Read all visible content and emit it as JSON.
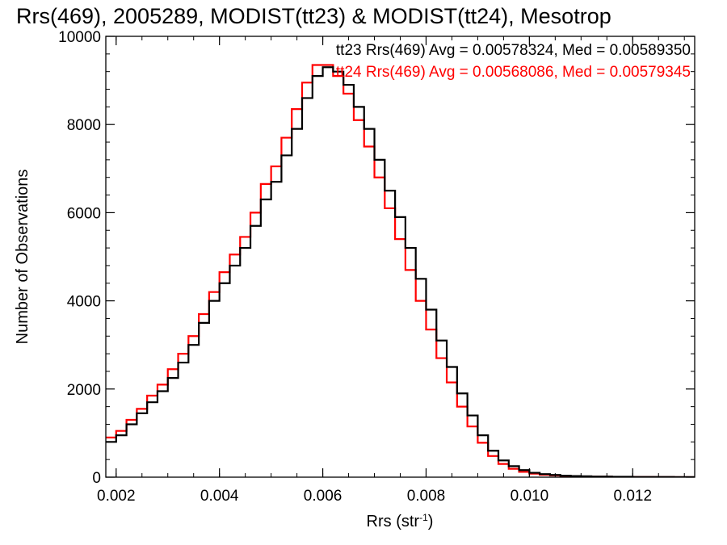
{
  "chart_data": {
    "type": "histogram",
    "title": "Rrs(469), 2005289, MODIST(tt23) & MODIST(tt24), Mesotrop",
    "xlabel": "Rrs (str",
    "xlabel_superscript": "-1",
    "xlabel_suffix": ")",
    "ylabel": "Number of Observations",
    "xlim": [
      0.0018,
      0.0132
    ],
    "ylim": [
      0,
      10000
    ],
    "x_ticks": [
      0.002,
      0.004,
      0.006,
      0.008,
      0.01,
      0.012
    ],
    "x_tick_labels": [
      "0.002",
      "0.004",
      "0.006",
      "0.008",
      "0.010",
      "0.012"
    ],
    "y_ticks": [
      0,
      2000,
      4000,
      6000,
      8000,
      10000
    ],
    "y_tick_labels": [
      "0",
      "2000",
      "4000",
      "6000",
      "8000",
      "10000"
    ],
    "legend_position": "top-right",
    "series": [
      {
        "name": "tt23",
        "legend": "tt23 Rrs(469) Avg = 0.00578324, Med = 0.00589350",
        "color": "#000000",
        "x": [
          0.0018,
          0.002,
          0.0022,
          0.0024,
          0.0026,
          0.0028,
          0.003,
          0.0032,
          0.0034,
          0.0036,
          0.0038,
          0.004,
          0.0042,
          0.0044,
          0.0046,
          0.0048,
          0.005,
          0.0052,
          0.0054,
          0.0056,
          0.0058,
          0.006,
          0.0062,
          0.0064,
          0.0066,
          0.0068,
          0.007,
          0.0072,
          0.0074,
          0.0076,
          0.0078,
          0.008,
          0.0082,
          0.0084,
          0.0086,
          0.0088,
          0.009,
          0.0092,
          0.0094,
          0.0096,
          0.0098,
          0.01,
          0.0102,
          0.0104,
          0.0106,
          0.0108,
          0.011,
          0.0112,
          0.0116,
          0.012,
          0.0124,
          0.0128,
          0.0132
        ],
        "values": [
          800,
          950,
          1200,
          1450,
          1700,
          1950,
          2250,
          2600,
          3000,
          3500,
          4000,
          4400,
          4800,
          5200,
          5700,
          6300,
          6700,
          7300,
          7900,
          8600,
          9100,
          9300,
          9200,
          8900,
          8400,
          7900,
          7200,
          6500,
          5900,
          5200,
          4500,
          3800,
          3100,
          2500,
          1900,
          1400,
          950,
          600,
          380,
          250,
          160,
          100,
          70,
          50,
          35,
          25,
          20,
          15,
          10,
          6,
          4,
          2,
          1
        ]
      },
      {
        "name": "tt24",
        "legend": "tt24 Rrs(469) Avg = 0.00568086, Med = 0.00579345",
        "color": "#ff0000",
        "x": [
          0.0018,
          0.002,
          0.0022,
          0.0024,
          0.0026,
          0.0028,
          0.003,
          0.0032,
          0.0034,
          0.0036,
          0.0038,
          0.004,
          0.0042,
          0.0044,
          0.0046,
          0.0048,
          0.005,
          0.0052,
          0.0054,
          0.0056,
          0.0058,
          0.006,
          0.0062,
          0.0064,
          0.0066,
          0.0068,
          0.007,
          0.0072,
          0.0074,
          0.0076,
          0.0078,
          0.008,
          0.0082,
          0.0084,
          0.0086,
          0.0088,
          0.009,
          0.0092,
          0.0094,
          0.0096,
          0.0098,
          0.01,
          0.0102,
          0.0104,
          0.0106,
          0.0108,
          0.011,
          0.0112,
          0.0116,
          0.012,
          0.0124,
          0.0128,
          0.0132
        ],
        "values": [
          900,
          1050,
          1300,
          1550,
          1850,
          2100,
          2450,
          2800,
          3200,
          3700,
          4200,
          4650,
          5050,
          5450,
          6000,
          6650,
          7050,
          7700,
          8350,
          8950,
          9350,
          9350,
          9100,
          8700,
          8100,
          7500,
          6800,
          6100,
          5400,
          4700,
          4000,
          3350,
          2700,
          2150,
          1600,
          1150,
          780,
          480,
          300,
          190,
          120,
          80,
          55,
          40,
          28,
          20,
          15,
          11,
          7,
          4,
          3,
          1,
          1
        ]
      }
    ]
  }
}
